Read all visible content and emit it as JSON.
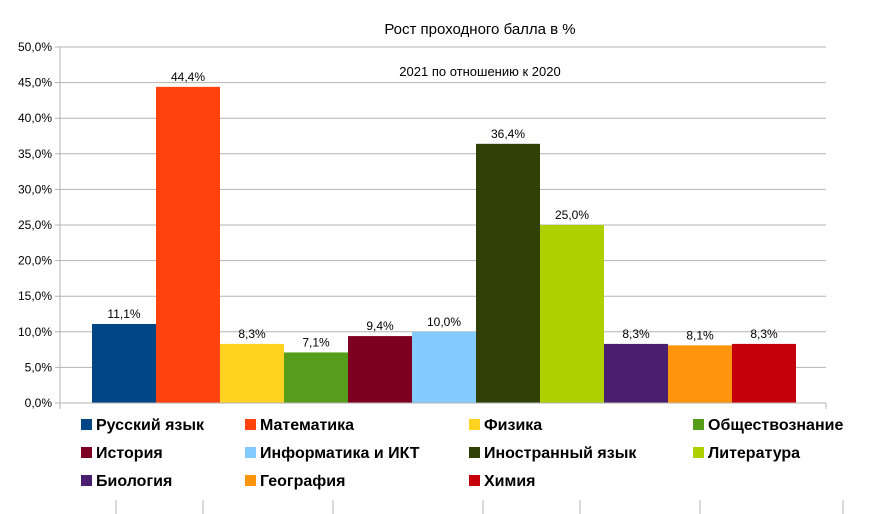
{
  "chart_data": {
    "type": "bar",
    "title": "Рост проходного балла в %",
    "subtitle": "2021 по отношению к 2020",
    "ylim": [
      0,
      50
    ],
    "yticks": [
      "0,0%",
      "5,0%",
      "10,0%",
      "15,0%",
      "20,0%",
      "25,0%",
      "30,0%",
      "35,0%",
      "40,0%",
      "45,0%",
      "50,0%"
    ],
    "grid": true,
    "legend_position": "bottom",
    "series": [
      {
        "name": "Русский язык",
        "value": 11.1,
        "label": "11,1%",
        "color": "#004586"
      },
      {
        "name": "Математика",
        "value": 44.4,
        "label": "44,4%",
        "color": "#ff420e"
      },
      {
        "name": "Физика",
        "value": 8.3,
        "label": "8,3%",
        "color": "#ffd320"
      },
      {
        "name": "Обществознание",
        "value": 7.1,
        "label": "7,1%",
        "color": "#579d1c"
      },
      {
        "name": "История",
        "value": 9.4,
        "label": "9,4%",
        "color": "#7e0021"
      },
      {
        "name": "Информатика и ИКТ",
        "value": 10.0,
        "label": "10,0%",
        "color": "#83caff"
      },
      {
        "name": "Иностранный язык",
        "value": 36.4,
        "label": "36,4%",
        "color": "#314004"
      },
      {
        "name": "Литература",
        "value": 25.0,
        "label": "25,0%",
        "color": "#aecf00"
      },
      {
        "name": "Биология",
        "value": 8.3,
        "label": "8,3%",
        "color": "#4b1f6f"
      },
      {
        "name": "География",
        "value": 8.1,
        "label": "8,1%",
        "color": "#ff950e"
      },
      {
        "name": "Химия",
        "value": 8.3,
        "label": "8,3%",
        "color": "#c5000b"
      }
    ]
  }
}
